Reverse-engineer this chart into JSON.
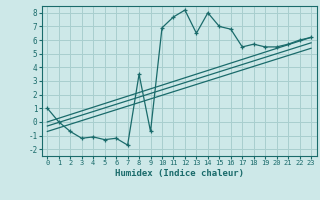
{
  "xlabel": "Humidex (Indice chaleur)",
  "background_color": "#cde8e8",
  "grid_color": "#a8cece",
  "line_color": "#1a6b6b",
  "xlim": [
    -0.5,
    23.5
  ],
  "ylim": [
    -2.5,
    8.5
  ],
  "xticks": [
    0,
    1,
    2,
    3,
    4,
    5,
    6,
    7,
    8,
    9,
    10,
    11,
    12,
    13,
    14,
    15,
    16,
    17,
    18,
    19,
    20,
    21,
    22,
    23
  ],
  "yticks": [
    -2,
    -1,
    0,
    1,
    2,
    3,
    4,
    5,
    6,
    7,
    8
  ],
  "curve_x": [
    0,
    1,
    2,
    3,
    4,
    5,
    6,
    7,
    8,
    9,
    10,
    11,
    12,
    13,
    14,
    15,
    16,
    17,
    18,
    19,
    20,
    21,
    22,
    23
  ],
  "curve_y": [
    1.0,
    0.0,
    -0.7,
    -1.2,
    -1.1,
    -1.3,
    -1.2,
    -1.7,
    3.5,
    -0.7,
    6.9,
    7.7,
    8.2,
    6.5,
    8.0,
    7.0,
    6.8,
    5.5,
    5.7,
    5.5,
    5.5,
    5.7,
    6.0,
    6.2
  ],
  "line1_x": [
    0,
    23
  ],
  "line1_y": [
    0.0,
    6.2
  ],
  "line2_x": [
    0,
    23
  ],
  "line2_y": [
    -0.3,
    5.8
  ],
  "line3_x": [
    0,
    23
  ],
  "line3_y": [
    -0.7,
    5.4
  ]
}
